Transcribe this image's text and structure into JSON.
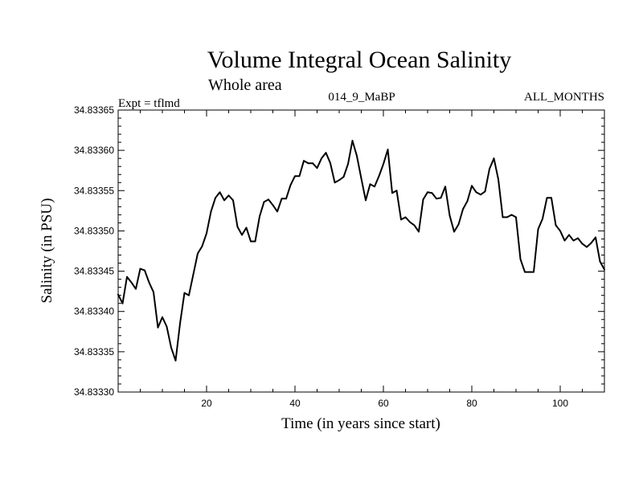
{
  "chart_data": {
    "type": "line",
    "title": "Volume Integral Ocean Salinity",
    "subtitle": "Whole area",
    "annotations": {
      "left": "Expt = tflmd",
      "center": "014_9_MaBP",
      "right": "ALL_MONTHS"
    },
    "xlabel": "Time (in years since start)",
    "ylabel": "Salinity (in PSU)",
    "xlim": [
      0,
      110
    ],
    "ylim": [
      34.8333,
      34.83365
    ],
    "xticks": [
      20,
      40,
      60,
      80,
      100
    ],
    "xtick_labels": [
      "20",
      "40",
      "60",
      "80",
      "100"
    ],
    "yticks": [
      34.8333,
      34.83335,
      34.8334,
      34.83345,
      34.8335,
      34.83355,
      34.8336,
      34.83365
    ],
    "ytick_labels": [
      "34.83330",
      "34.83335",
      "34.83340",
      "34.83345",
      "34.83350",
      "34.83355",
      "34.83360",
      "34.83365"
    ],
    "grid": false,
    "series": [
      {
        "name": "Salinity",
        "color": "#000000",
        "x": [
          0,
          1,
          2,
          3,
          4,
          5,
          6,
          7,
          8,
          9,
          10,
          11,
          12,
          13,
          14,
          15,
          16,
          17,
          18,
          19,
          20,
          21,
          22,
          23,
          24,
          25,
          26,
          27,
          28,
          29,
          30,
          31,
          32,
          33,
          34,
          35,
          36,
          37,
          38,
          39,
          40,
          41,
          42,
          43,
          44,
          45,
          46,
          47,
          48,
          49,
          50,
          51,
          52,
          53,
          54,
          55,
          56,
          57,
          58,
          59,
          60,
          61,
          62,
          63,
          64,
          65,
          66,
          67,
          68,
          69,
          70,
          71,
          72,
          73,
          74,
          75,
          76,
          77,
          78,
          79,
          80,
          81,
          82,
          83,
          84,
          85,
          86,
          87,
          88,
          89,
          90,
          91,
          92,
          93,
          94,
          95,
          96,
          97,
          98,
          99,
          100,
          101,
          102,
          103,
          104,
          105,
          106,
          107,
          108,
          109,
          110
        ],
        "values": [
          34.833421,
          34.83341,
          34.833443,
          34.833436,
          34.833428,
          34.833453,
          34.833451,
          34.833436,
          34.833424,
          34.83338,
          34.833393,
          34.833381,
          34.833355,
          34.833339,
          34.833385,
          34.833423,
          34.83342,
          34.833446,
          34.833472,
          34.833481,
          34.833497,
          34.833524,
          34.833541,
          34.833548,
          34.833538,
          34.833544,
          34.833538,
          34.833505,
          34.833495,
          34.833504,
          34.833487,
          34.833487,
          34.833518,
          34.833536,
          34.833539,
          34.833532,
          34.833524,
          34.83354,
          34.83354,
          34.833557,
          34.833568,
          34.833568,
          34.833587,
          34.833584,
          34.833584,
          34.833578,
          34.83359,
          34.833597,
          34.833584,
          34.83356,
          34.833563,
          34.833567,
          34.833583,
          34.833612,
          34.833593,
          34.833565,
          34.833538,
          34.833558,
          34.833555,
          34.833568,
          34.833583,
          34.833601,
          34.833547,
          34.83355,
          34.833514,
          34.833517,
          34.833511,
          34.833507,
          34.833499,
          34.833539,
          34.833548,
          34.833547,
          34.83354,
          34.833541,
          34.833555,
          34.833519,
          34.833499,
          34.833508,
          34.833527,
          34.833537,
          34.833556,
          34.833548,
          34.833545,
          34.833549,
          34.833577,
          34.83359,
          34.833564,
          34.833517,
          34.833517,
          34.83352,
          34.833517,
          34.833465,
          34.833449,
          34.833449,
          34.833449,
          34.833502,
          34.833515,
          34.833541,
          34.833541,
          34.833507,
          34.8335,
          34.833488,
          34.833495,
          34.833488,
          34.833491,
          34.833484,
          34.83348,
          34.833485,
          34.833492,
          34.833462,
          34.833452
        ]
      }
    ]
  }
}
